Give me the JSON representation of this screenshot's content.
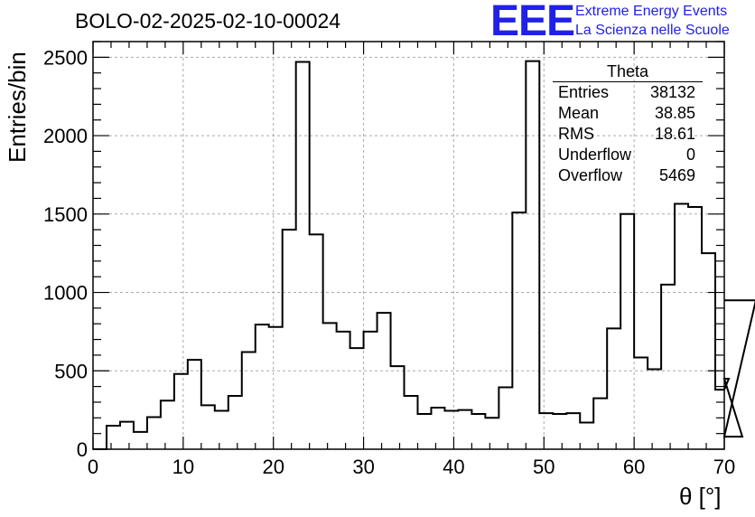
{
  "title": "BOLO-02-2025-02-10-00024",
  "logo": {
    "text": "EEE",
    "line1": "Extreme Energy Events",
    "line2": "La Scienza nelle Scuole",
    "color": "#2020e8"
  },
  "chart_data": {
    "type": "bar",
    "style": "step-histogram",
    "xlabel": "θ [°]",
    "ylabel": "Entries/bin",
    "xlim": [
      0,
      70
    ],
    "ylim": [
      0,
      2600
    ],
    "xticks": [
      0,
      10,
      20,
      30,
      40,
      50,
      60,
      70
    ],
    "yticks": [
      0,
      500,
      1000,
      1500,
      2000,
      2500
    ],
    "grid": true,
    "line_color": "#000000",
    "bin_width": 1.5,
    "bin_start": 0,
    "values": [
      0,
      150,
      175,
      110,
      205,
      310,
      480,
      570,
      280,
      245,
      340,
      620,
      795,
      780,
      1400,
      2470,
      1370,
      805,
      750,
      645,
      750,
      870,
      530,
      340,
      225,
      265,
      245,
      250,
      225,
      200,
      395,
      1510,
      2475,
      230,
      225,
      230,
      170,
      325,
      770,
      1500,
      585,
      510,
      1050,
      1565,
      1545,
      1250,
      380,
      450,
      80,
      950
    ],
    "stats": {
      "name": "Theta",
      "rows": [
        {
          "label": "Entries",
          "value": "38132"
        },
        {
          "label": "Mean",
          "value": "38.85"
        },
        {
          "label": "RMS",
          "value": "18.61"
        },
        {
          "label": "Underflow",
          "value": "0"
        },
        {
          "label": "Overflow",
          "value": "5469"
        }
      ]
    }
  }
}
